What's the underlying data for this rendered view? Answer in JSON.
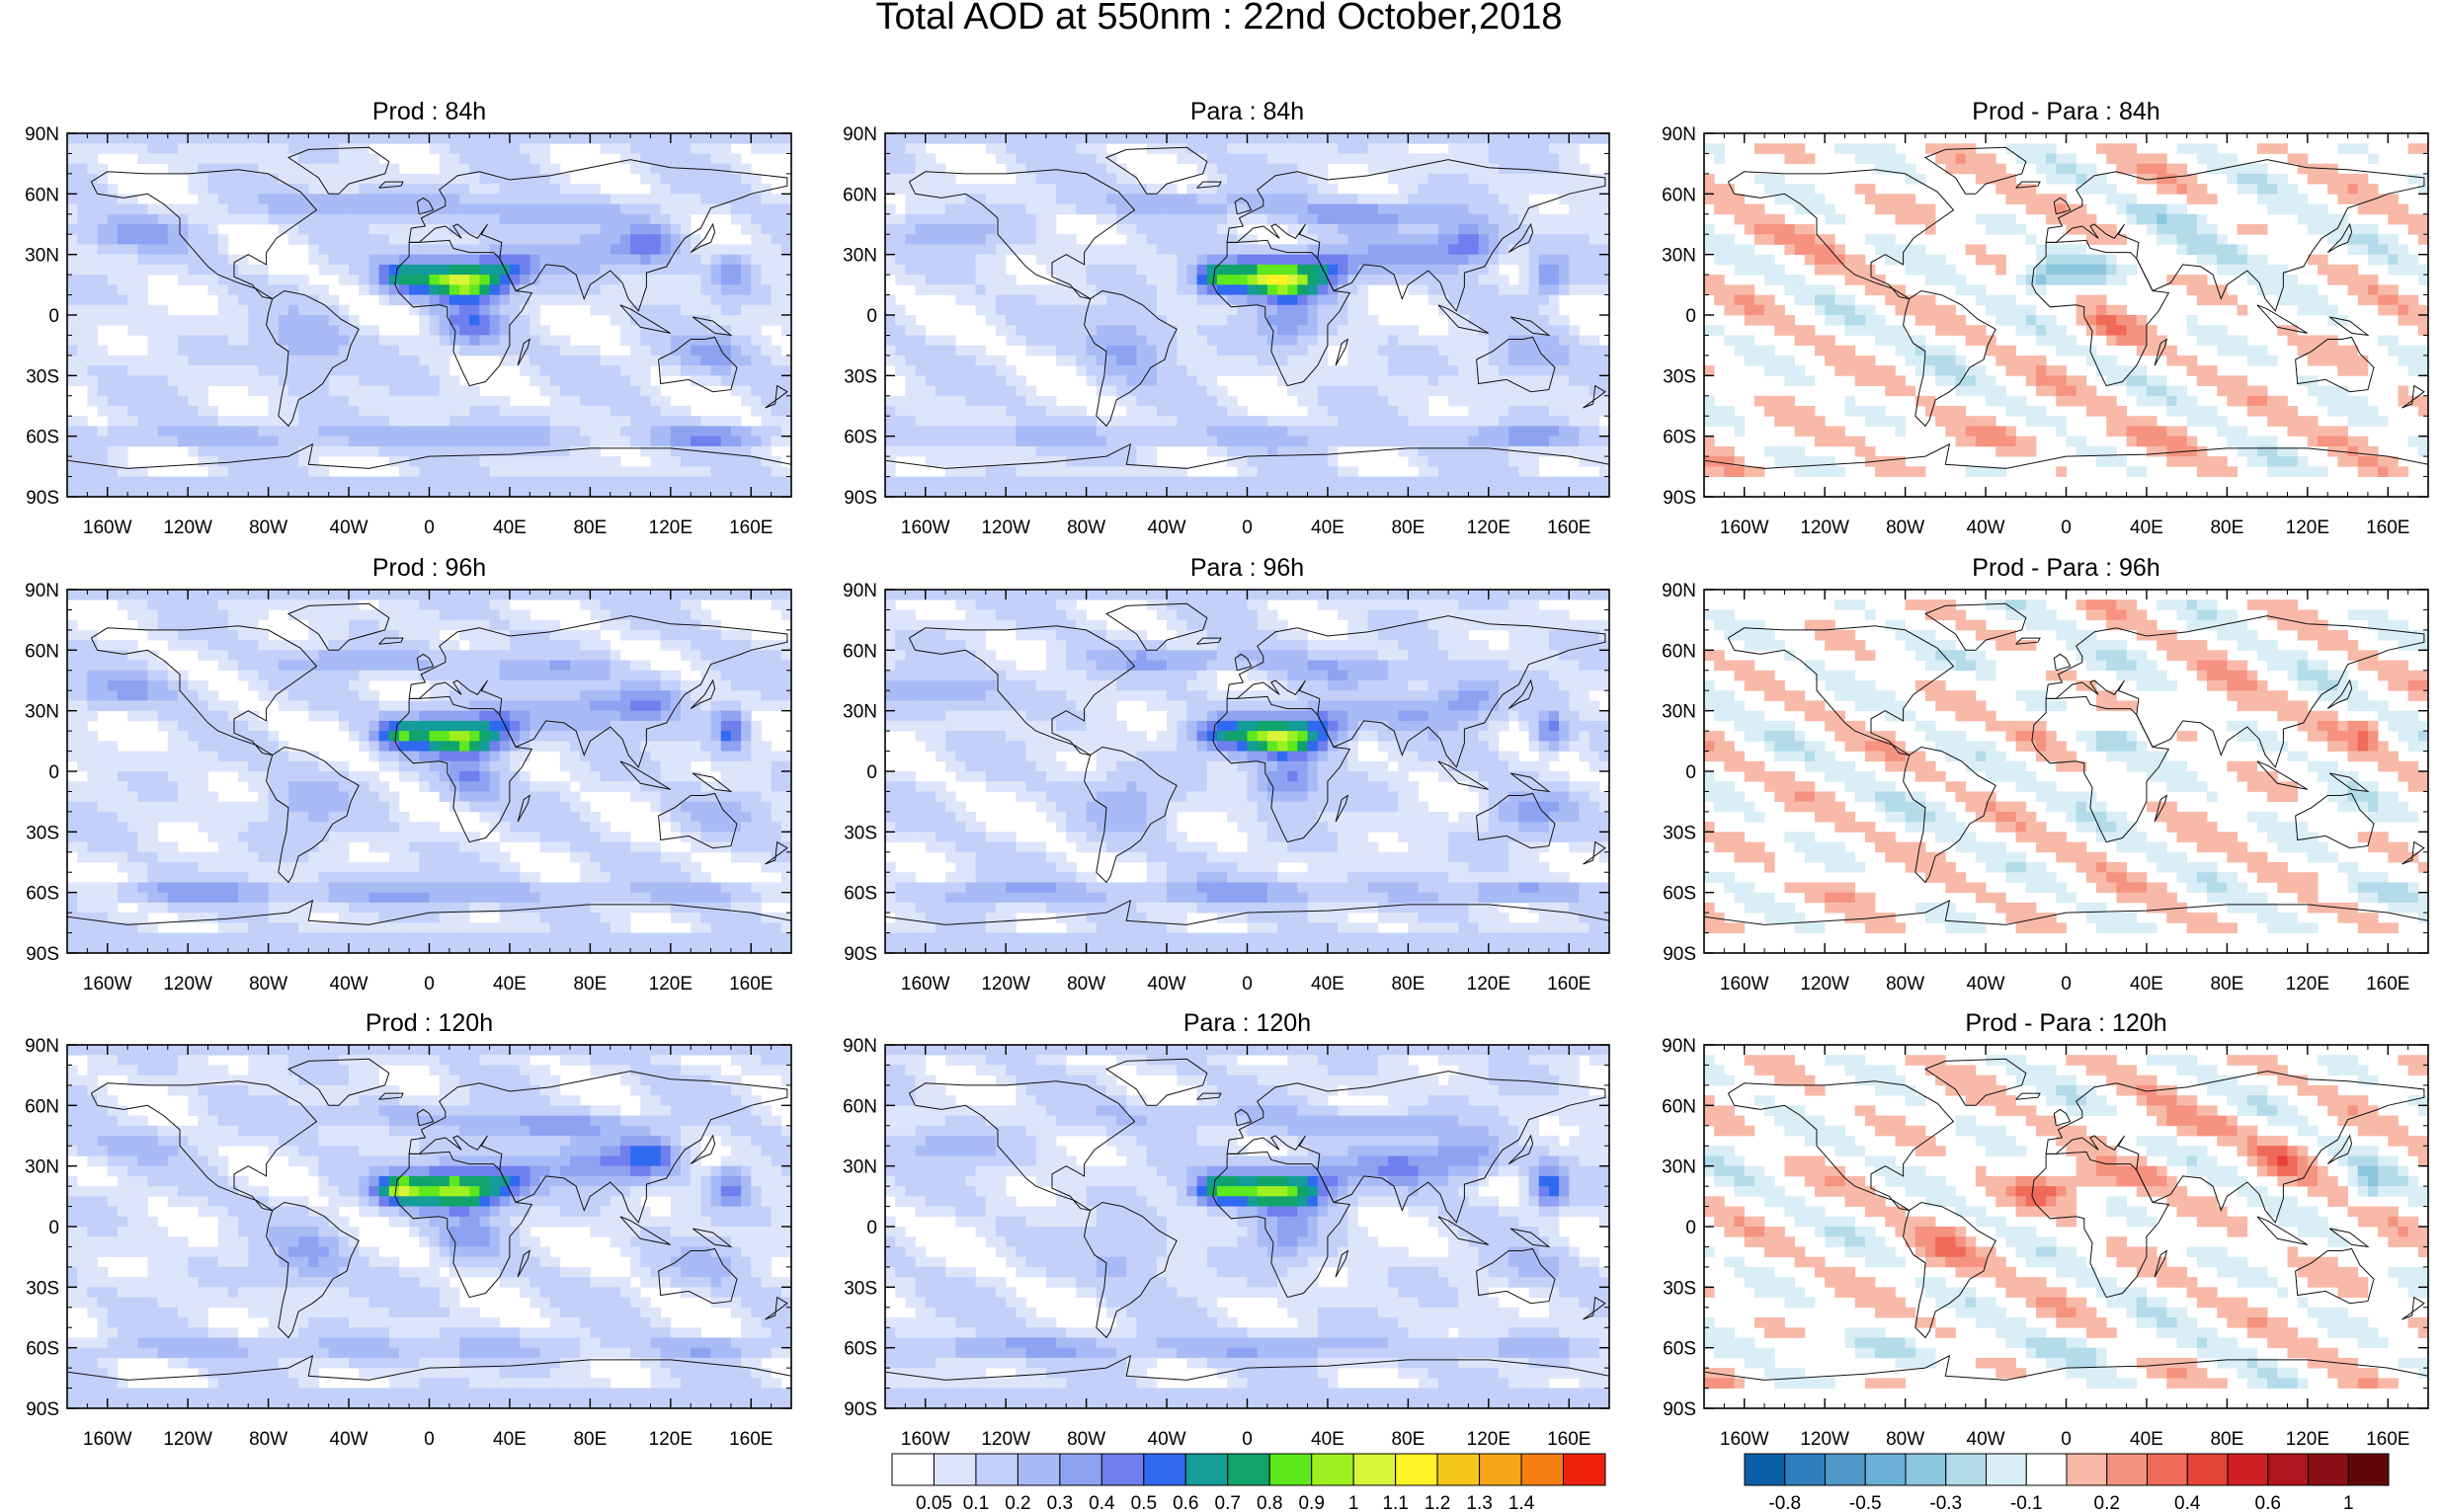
{
  "title": "Total AOD at 550nm : 22nd October,2018",
  "panels": [
    {
      "id": "prod-84",
      "title": "Prod : 84h",
      "kind": "aod"
    },
    {
      "id": "para-84",
      "title": "Para : 84h",
      "kind": "aod"
    },
    {
      "id": "diff-84",
      "title": "Prod - Para : 84h",
      "kind": "diff"
    },
    {
      "id": "prod-96",
      "title": "Prod : 96h",
      "kind": "aod"
    },
    {
      "id": "para-96",
      "title": "Para : 96h",
      "kind": "aod"
    },
    {
      "id": "diff-96",
      "title": "Prod - Para : 96h",
      "kind": "diff"
    },
    {
      "id": "prod-120",
      "title": "Prod : 120h",
      "kind": "aod"
    },
    {
      "id": "para-120",
      "title": "Para : 120h",
      "kind": "aod"
    },
    {
      "id": "diff-120",
      "title": "Prod - Para : 120h",
      "kind": "diff"
    }
  ],
  "lat_ticks": [
    "90N",
    "60N",
    "30N",
    "0",
    "30S",
    "60S",
    "90S"
  ],
  "lon_ticks": [
    "160W",
    "120W",
    "80W",
    "40W",
    "0",
    "40E",
    "80E",
    "120E",
    "160E"
  ],
  "lon_range": [
    -180,
    180
  ],
  "lat_range": [
    -90,
    90
  ],
  "aod_colorbar": {
    "labels": [
      "0.05",
      "0.1",
      "0.2",
      "0.3",
      "0.4",
      "0.5",
      "0.6",
      "0.7",
      "0.8",
      "0.9",
      "1",
      "1.1",
      "1.2",
      "1.3",
      "1.4"
    ],
    "colors": [
      "#ffffff",
      "#dde5fb",
      "#c3d0f9",
      "#a9bbf6",
      "#8ea2f2",
      "#6f7fee",
      "#2f6af0",
      "#149c98",
      "#11a36c",
      "#5ee81e",
      "#9ef020",
      "#d8f53a",
      "#fbf325",
      "#f7c61b",
      "#f7a617",
      "#f57f12",
      "#f0210c"
    ]
  },
  "diff_colorbar": {
    "labels": [
      "-0.8",
      "-0.5",
      "-0.3",
      "-0.1",
      "0.2",
      "0.4",
      "0.6",
      "1"
    ],
    "colors": [
      "#0a5fa6",
      "#2f7fbd",
      "#4f98c9",
      "#6ab0d6",
      "#8dc6df",
      "#b3dbea",
      "#d9eef6",
      "#ffffff",
      "#f8b9a8",
      "#f59380",
      "#ef6a57",
      "#e54238",
      "#cf1f23",
      "#b0141d",
      "#8c0e16",
      "#620709"
    ]
  }
}
